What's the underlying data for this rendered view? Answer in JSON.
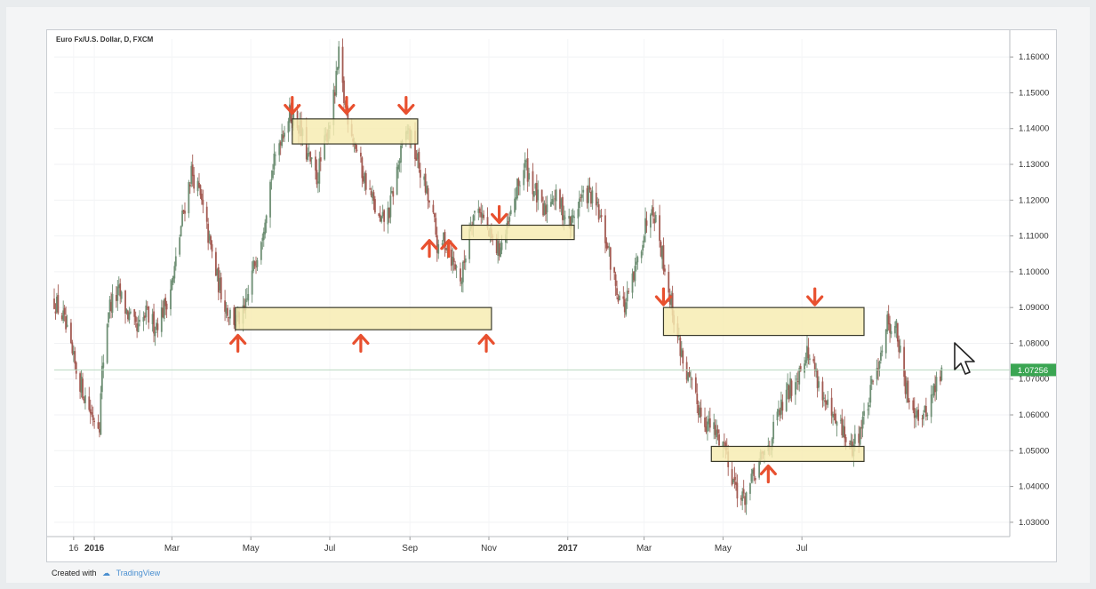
{
  "chart_data": {
    "type": "candlestick",
    "title": "Euro Fx/U.S. Dollar, D, FXCM",
    "x_ticks": [
      "16",
      "2016",
      "Mar",
      "May",
      "Jul",
      "Sep",
      "Nov",
      "2017",
      "Mar",
      "May",
      "Jul"
    ],
    "y_ticks": [
      "1.16000",
      "1.15000",
      "1.14000",
      "1.13000",
      "1.12000",
      "1.11000",
      "1.10000",
      "1.09000",
      "1.08000",
      "1.07000",
      "1.06000",
      "1.05000",
      "1.04000",
      "1.03000"
    ],
    "ylim": [
      1.026,
      1.165
    ],
    "current_price": 1.07256,
    "current_price_label": "1.07256",
    "colors": {
      "up": "#6e8f74",
      "down": "#a35a52",
      "zone_fill": "#f7ecb0",
      "zone_stroke": "#3a3a2a",
      "arrow": "#e8502f",
      "price_tag": "#3aa552"
    },
    "price_path": [
      [
        "2015-12-01",
        1.092
      ],
      [
        "2015-12-08",
        1.087
      ],
      [
        "2015-12-15",
        1.076
      ],
      [
        "2015-12-22",
        1.068
      ],
      [
        "2015-12-30",
        1.06
      ],
      [
        "2016-01-05",
        1.058
      ],
      [
        "2016-01-07",
        1.072
      ],
      [
        "2016-01-12",
        1.09
      ],
      [
        "2016-01-20",
        1.094
      ],
      [
        "2016-01-27",
        1.088
      ],
      [
        "2016-02-03",
        1.083
      ],
      [
        "2016-02-10",
        1.088
      ],
      [
        "2016-02-17",
        1.085
      ],
      [
        "2016-02-24",
        1.09
      ],
      [
        "2016-03-02",
        1.098
      ],
      [
        "2016-03-09",
        1.115
      ],
      [
        "2016-03-16",
        1.128
      ],
      [
        "2016-03-22",
        1.122
      ],
      [
        "2016-03-29",
        1.11
      ],
      [
        "2016-04-05",
        1.098
      ],
      [
        "2016-04-12",
        1.09
      ],
      [
        "2016-04-19",
        1.086
      ],
      [
        "2016-04-26",
        1.088
      ],
      [
        "2016-05-03",
        1.101
      ],
      [
        "2016-05-10",
        1.112
      ],
      [
        "2016-05-17",
        1.127
      ],
      [
        "2016-05-24",
        1.138
      ],
      [
        "2016-05-31",
        1.144
      ],
      [
        "2016-06-07",
        1.141
      ],
      [
        "2016-06-14",
        1.132
      ],
      [
        "2016-06-21",
        1.126
      ],
      [
        "2016-06-28",
        1.137
      ],
      [
        "2016-07-05",
        1.15
      ],
      [
        "2016-07-08",
        1.16
      ],
      [
        "2016-07-12",
        1.148
      ],
      [
        "2016-07-19",
        1.138
      ],
      [
        "2016-07-26",
        1.128
      ],
      [
        "2016-08-02",
        1.121
      ],
      [
        "2016-08-09",
        1.113
      ],
      [
        "2016-08-16",
        1.117
      ],
      [
        "2016-08-23",
        1.13
      ],
      [
        "2016-08-30",
        1.14
      ],
      [
        "2016-09-06",
        1.132
      ],
      [
        "2016-09-13",
        1.123
      ],
      [
        "2016-09-20",
        1.113
      ],
      [
        "2016-09-24",
        1.102
      ],
      [
        "2016-09-27",
        1.11
      ],
      [
        "2016-10-04",
        1.103
      ],
      [
        "2016-10-11",
        1.098
      ],
      [
        "2016-10-18",
        1.115
      ],
      [
        "2016-10-25",
        1.118
      ],
      [
        "2016-11-01",
        1.11
      ],
      [
        "2016-11-08",
        1.106
      ],
      [
        "2016-11-15",
        1.111
      ],
      [
        "2016-11-22",
        1.122
      ],
      [
        "2016-11-29",
        1.13
      ],
      [
        "2016-12-06",
        1.123
      ],
      [
        "2016-12-13",
        1.116
      ],
      [
        "2016-12-20",
        1.122
      ],
      [
        "2016-12-27",
        1.118
      ],
      [
        "2017-01-03",
        1.113
      ],
      [
        "2017-01-10",
        1.12
      ],
      [
        "2017-01-17",
        1.122
      ],
      [
        "2017-01-24",
        1.117
      ],
      [
        "2017-01-31",
        1.108
      ],
      [
        "2017-02-07",
        1.096
      ],
      [
        "2017-02-14",
        1.09
      ],
      [
        "2017-02-21",
        1.098
      ],
      [
        "2017-02-28",
        1.11
      ],
      [
        "2017-03-07",
        1.12
      ],
      [
        "2017-03-14",
        1.107
      ],
      [
        "2017-03-21",
        1.093
      ],
      [
        "2017-03-28",
        1.08
      ],
      [
        "2017-04-04",
        1.07
      ],
      [
        "2017-04-11",
        1.063
      ],
      [
        "2017-04-18",
        1.058
      ],
      [
        "2017-04-25",
        1.055
      ],
      [
        "2017-05-02",
        1.052
      ],
      [
        "2017-05-09",
        1.042
      ],
      [
        "2017-05-16",
        1.036
      ],
      [
        "2017-05-23",
        1.041
      ],
      [
        "2017-05-30",
        1.047
      ],
      [
        "2017-06-06",
        1.052
      ],
      [
        "2017-06-13",
        1.06
      ],
      [
        "2017-06-20",
        1.066
      ],
      [
        "2017-06-27",
        1.071
      ],
      [
        "2017-07-04",
        1.078
      ],
      [
        "2017-07-11",
        1.073
      ],
      [
        "2017-07-18",
        1.064
      ],
      [
        "2017-07-25",
        1.058
      ],
      [
        "2017-08-01",
        1.056
      ],
      [
        "2017-08-08",
        1.05
      ],
      [
        "2017-08-15",
        1.056
      ],
      [
        "2017-08-22",
        1.064
      ],
      [
        "2017-08-29",
        1.075
      ],
      [
        "2017-09-05",
        1.086
      ],
      [
        "2017-09-12",
        1.084
      ],
      [
        "2017-09-19",
        1.067
      ],
      [
        "2017-09-26",
        1.062
      ],
      [
        "2017-10-03",
        1.059
      ],
      [
        "2017-10-10",
        1.066
      ],
      [
        "2017-10-17",
        1.072
      ]
    ],
    "zones": [
      {
        "name": "resistance-top",
        "x1": "2016-06-02",
        "x2": "2016-09-07",
        "y1": 1.1357,
        "y2": 1.1427
      },
      {
        "name": "support-left",
        "x1": "2016-04-19",
        "x2": "2016-11-03",
        "y1": 1.0838,
        "y2": 1.09
      },
      {
        "name": "mid-zone",
        "x1": "2016-10-11",
        "x2": "2017-01-06",
        "y1": 1.109,
        "y2": 1.113
      },
      {
        "name": "resistance-right",
        "x1": "2017-03-16",
        "x2": "2017-08-18",
        "y1": 1.0822,
        "y2": 1.09
      },
      {
        "name": "support-right",
        "x1": "2017-04-22",
        "x2": "2017-08-18",
        "y1": 1.047,
        "y2": 1.0512
      }
    ],
    "arrows": [
      {
        "dir": "down",
        "x": "2016-06-02",
        "y": 1.146
      },
      {
        "dir": "down",
        "x": "2016-07-14",
        "y": 1.146
      },
      {
        "dir": "down",
        "x": "2016-08-29",
        "y": 1.146
      },
      {
        "dir": "down",
        "x": "2016-11-09",
        "y": 1.1155
      },
      {
        "dir": "down",
        "x": "2017-03-16",
        "y": 1.0925
      },
      {
        "dir": "down",
        "x": "2017-07-11",
        "y": 1.0925
      },
      {
        "dir": "up",
        "x": "2016-04-21",
        "y": 1.0805
      },
      {
        "dir": "up",
        "x": "2016-07-25",
        "y": 1.0805
      },
      {
        "dir": "up",
        "x": "2016-10-30",
        "y": 1.0805
      },
      {
        "dir": "up",
        "x": "2016-09-16",
        "y": 1.107
      },
      {
        "dir": "up",
        "x": "2016-10-01",
        "y": 1.107
      },
      {
        "dir": "up",
        "x": "2017-06-05",
        "y": 1.044
      }
    ]
  },
  "footer": {
    "created_with": "Created with",
    "brand": "TradingView"
  },
  "icons": {
    "cursor": "mouse-pointer-icon",
    "brand_logo": "tradingview-logo-icon"
  }
}
